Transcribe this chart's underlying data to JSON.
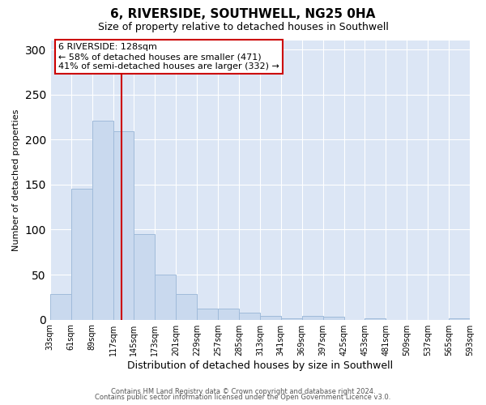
{
  "title": "6, RIVERSIDE, SOUTHWELL, NG25 0HA",
  "subtitle": "Size of property relative to detached houses in Southwell",
  "xlabel": "Distribution of detached houses by size in Southwell",
  "ylabel": "Number of detached properties",
  "bar_color": "#c9d9ee",
  "bar_edge_color": "#a0bbda",
  "figure_bg": "#ffffff",
  "axes_bg": "#dce6f5",
  "grid_color": "#ffffff",
  "bin_starts": [
    33,
    61,
    89,
    117,
    145,
    173,
    201,
    229,
    257,
    285,
    313,
    341,
    369,
    397,
    425,
    453,
    481,
    509,
    537,
    565
  ],
  "bin_width": 28,
  "counts": [
    28,
    145,
    221,
    209,
    95,
    50,
    28,
    12,
    12,
    8,
    4,
    1,
    4,
    3,
    0,
    1,
    0,
    0,
    0,
    1
  ],
  "property_size": 128,
  "vline_color": "#cc0000",
  "annotation_line1": "6 RIVERSIDE: 128sqm",
  "annotation_line2": "← 58% of detached houses are smaller (471)",
  "annotation_line3": "41% of semi-detached houses are larger (332) →",
  "annotation_box_color": "#ffffff",
  "annotation_box_edge": "#cc0000",
  "ylim": [
    0,
    310
  ],
  "yticks": [
    0,
    50,
    100,
    150,
    200,
    250,
    300
  ],
  "tick_labels": [
    "33sqm",
    "61sqm",
    "89sqm",
    "117sqm",
    "145sqm",
    "173sqm",
    "201sqm",
    "229sqm",
    "257sqm",
    "285sqm",
    "313sqm",
    "341sqm",
    "369sqm",
    "397sqm",
    "425sqm",
    "453sqm",
    "481sqm",
    "509sqm",
    "537sqm",
    "565sqm",
    "593sqm"
  ],
  "footer_line1": "Contains HM Land Registry data © Crown copyright and database right 2024.",
  "footer_line2": "Contains public sector information licensed under the Open Government Licence v3.0.",
  "title_fontsize": 11,
  "subtitle_fontsize": 9,
  "xlabel_fontsize": 9,
  "ylabel_fontsize": 8,
  "tick_fontsize": 7,
  "footer_fontsize": 6,
  "annotation_fontsize": 8
}
